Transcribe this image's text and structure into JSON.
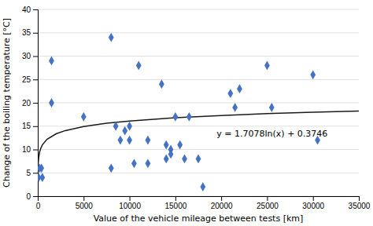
{
  "chart_data": {
    "type": "scatter",
    "xlabel": "Value of the vehicle mileage between tests [km]",
    "ylabel": "Change of the boiling temperature [°C]",
    "xlim": [
      0,
      35000
    ],
    "ylim": [
      0,
      40
    ],
    "xticks": [
      0,
      5000,
      10000,
      15000,
      20000,
      25000,
      30000,
      35000
    ],
    "yticks": [
      0,
      5,
      10,
      15,
      20,
      25,
      30,
      35,
      40
    ],
    "grid": "y",
    "series": [
      {
        "type": "scatter",
        "color": "#4472C4",
        "marker": "diamond",
        "x": [
          100,
          200,
          400,
          500,
          1500,
          1500,
          5000,
          8000,
          8000,
          8500,
          9000,
          9500,
          10000,
          10000,
          10500,
          11000,
          12000,
          12000,
          13500,
          14000,
          14000,
          14500,
          14500,
          15000,
          15500,
          16000,
          16500,
          17500,
          18000,
          21000,
          21500,
          22000,
          25000,
          25500,
          30000,
          30500
        ],
        "values": [
          4,
          6,
          6,
          4,
          29,
          20,
          17,
          34,
          6,
          15,
          12,
          14,
          15,
          12,
          7,
          28,
          12,
          7,
          24,
          8,
          11,
          10,
          9,
          17,
          11,
          8,
          17,
          8,
          2,
          22,
          19,
          23,
          28,
          19,
          26,
          12
        ]
      },
      {
        "type": "line",
        "color": "#1a1a1a",
        "line_style": "solid",
        "x": [
          30,
          50,
          100,
          200,
          300,
          500,
          1000,
          2000,
          3000,
          5000,
          7500,
          10000,
          15000,
          20000,
          25000,
          30000,
          35000
        ],
        "values": [
          6.1832,
          7.0556,
          8.2393,
          9.4231,
          10.1155,
          10.9879,
          12.1717,
          13.3554,
          14.0479,
          14.9203,
          15.6127,
          16.104,
          16.7965,
          17.2878,
          17.6689,
          17.9802,
          18.2435
        ]
      }
    ],
    "annotations": [
      {
        "text": "y = 1.7078ln(x) + 0.3746",
        "x": 19500,
        "y": 13.5
      }
    ]
  }
}
